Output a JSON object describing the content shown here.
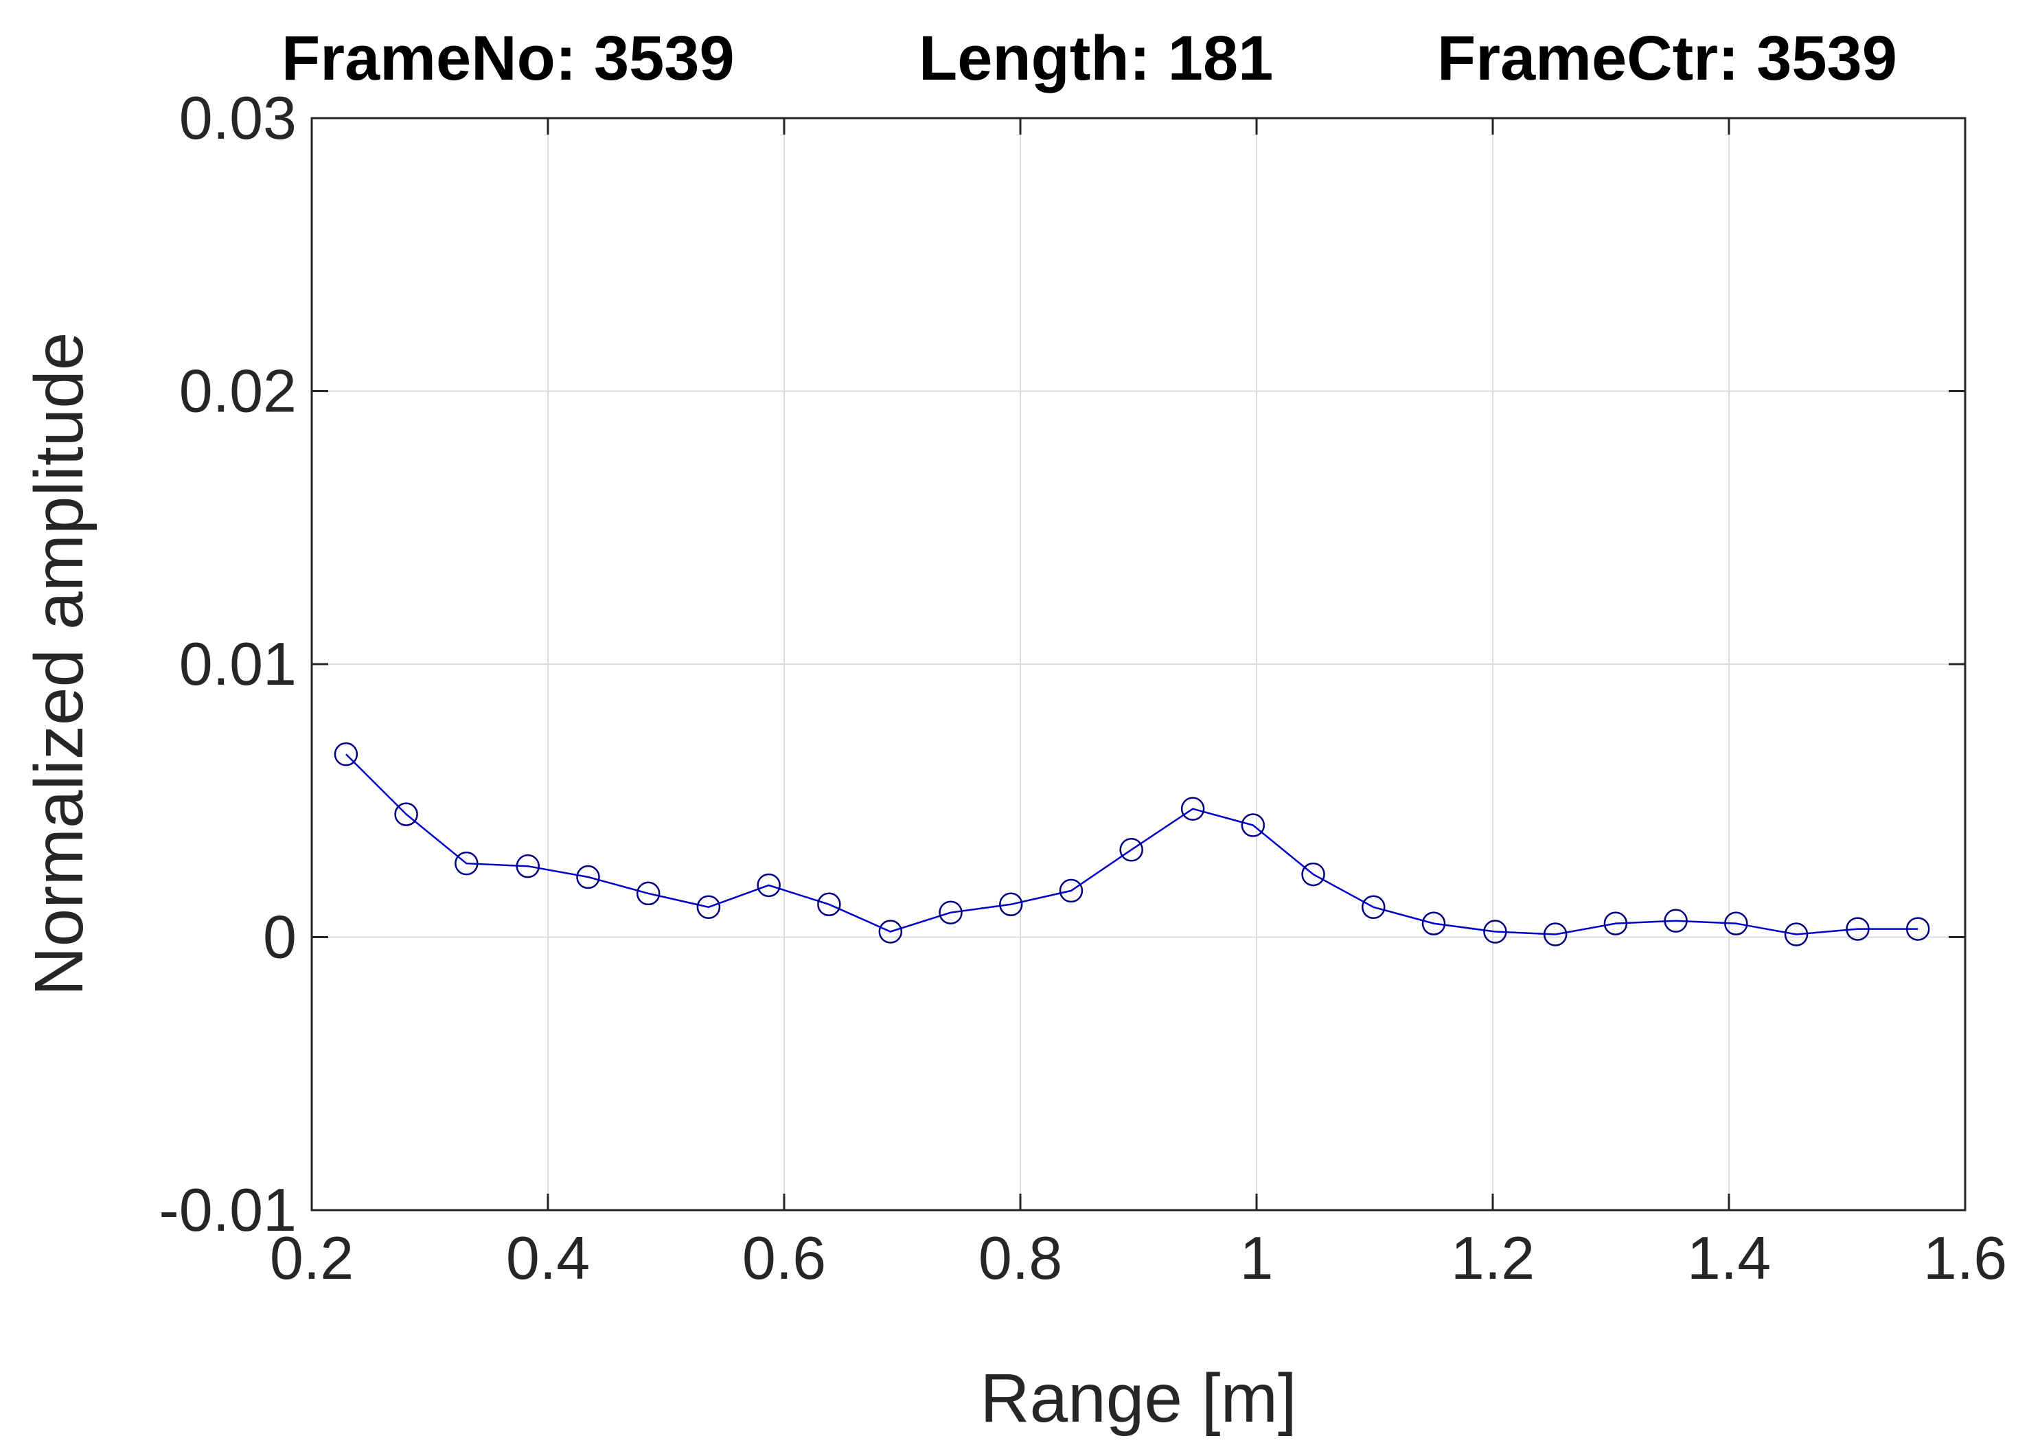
{
  "chart_data": {
    "type": "line",
    "title_parts": [
      "FrameNo: 3539",
      "Length: 181",
      "FrameCtr: 3539"
    ],
    "xlabel": "Range [m]",
    "ylabel": "Normalized amplitude",
    "xlim": [
      0.2,
      1.6
    ],
    "ylim": [
      -0.01,
      0.03
    ],
    "x_ticks": [
      0.2,
      0.4,
      0.6,
      0.8,
      1.0,
      1.2,
      1.4,
      1.6
    ],
    "x_tick_labels": [
      "0.2",
      "0.4",
      "0.6",
      "0.8",
      "1",
      "1.2",
      "1.4",
      "1.6"
    ],
    "y_ticks": [
      -0.01,
      0,
      0.01,
      0.02,
      0.03
    ],
    "y_tick_labels": [
      "-0.01",
      "0",
      "0.01",
      "0.02",
      "0.03"
    ],
    "grid": true,
    "line_color": "#0000cc",
    "marker": "circle",
    "marker_color": "#000080",
    "series": [
      {
        "x": [
          0.229,
          0.28,
          0.331,
          0.383,
          0.434,
          0.485,
          0.536,
          0.587,
          0.638,
          0.69,
          0.741,
          0.792,
          0.843,
          0.894,
          0.946,
          0.997,
          1.048,
          1.099,
          1.15,
          1.202,
          1.253,
          1.304,
          1.355,
          1.406,
          1.457,
          1.509,
          1.56
        ],
        "y": [
          0.0067,
          0.0045,
          0.0027,
          0.0026,
          0.0022,
          0.0016,
          0.0011,
          0.0019,
          0.0012,
          0.0002,
          0.0009,
          0.0012,
          0.0017,
          0.0032,
          0.0047,
          0.0041,
          0.0023,
          0.0011,
          0.0005,
          0.0002,
          0.0001,
          0.0005,
          0.0006,
          0.0005,
          0.0001,
          0.0003,
          0.0003
        ]
      }
    ]
  }
}
